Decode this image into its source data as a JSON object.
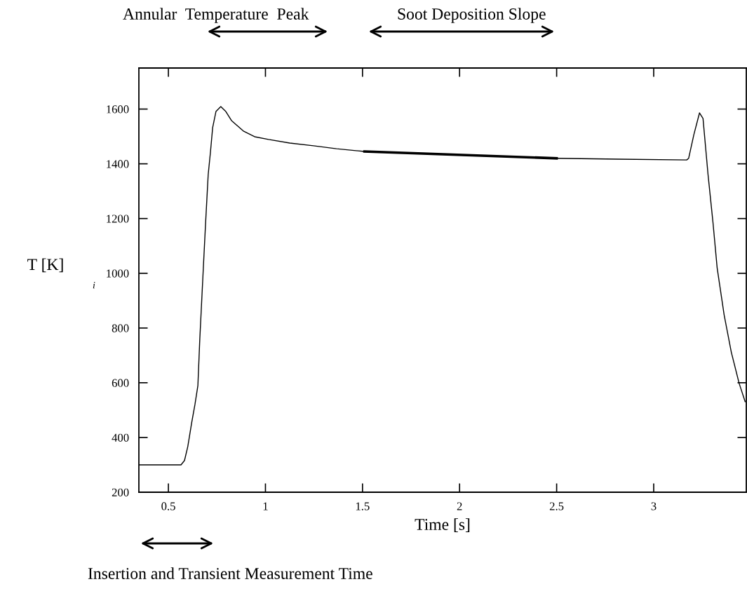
{
  "chart_data": {
    "type": "line",
    "xlabel": "Time [s]",
    "ylabel": "T [K]",
    "xlim": [
      0.348,
      3.477
    ],
    "ylim": [
      200,
      1750
    ],
    "xticks": [
      0.5,
      1,
      1.5,
      2,
      2.5,
      3
    ],
    "yticks": [
      200,
      400,
      600,
      800,
      1000,
      1200,
      1400,
      1600
    ],
    "grid": false,
    "legend": false,
    "marker": "none",
    "line_style": "solid",
    "series": [
      {
        "color": "#000000",
        "x": [
          0.348,
          0.45,
          0.565,
          0.583,
          0.6,
          0.62,
          0.637,
          0.652,
          0.662,
          0.68,
          0.692,
          0.705,
          0.717,
          0.728,
          0.745,
          0.77,
          0.796,
          0.825,
          0.886,
          0.944,
          1.016,
          1.125,
          1.247,
          1.366,
          1.51,
          1.727,
          1.98,
          2.496,
          2.82,
          3.17,
          3.18,
          3.207,
          3.236,
          3.254,
          3.28,
          3.305,
          3.327,
          3.363,
          3.4,
          3.44,
          3.471
        ],
        "values": [
          300,
          300,
          300,
          316,
          367,
          454,
          521,
          590,
          762,
          1019,
          1188,
          1360,
          1445,
          1532,
          1591,
          1609,
          1591,
          1558,
          1520,
          1499,
          1489,
          1476,
          1466,
          1455,
          1445,
          1440,
          1432,
          1420,
          1417,
          1414,
          1420,
          1507,
          1586,
          1566,
          1360,
          1188,
          1019,
          847,
          711,
          598,
          531
        ]
      },
      {
        "type": "line",
        "color": "#000000",
        "x": [
          1.51,
          2.5
        ],
        "values": [
          1445,
          1420
        ]
      }
    ],
    "annotations": [
      "Annular  Temperature  Peak",
      "Soot Deposition Slope",
      "Insertion and Transient Measurement Time",
      "i"
    ]
  }
}
